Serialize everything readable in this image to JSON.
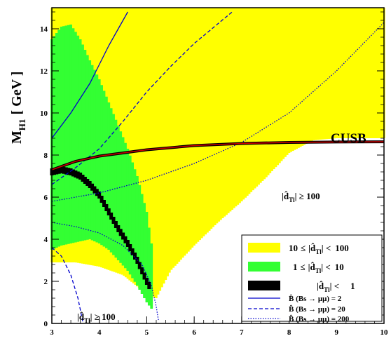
{
  "chart_data": {
    "type": "scatter",
    "ylabel": "M",
    "ylabel_sub": "H1",
    "ylabel_unit": "[ GeV ]",
    "xlim": [
      3,
      10
    ],
    "ylim": [
      0,
      15
    ],
    "x_ticks": [
      "3",
      "4",
      "5",
      "6",
      "7",
      "8",
      "9",
      "10"
    ],
    "y_ticks": [
      "0",
      "2",
      "4",
      "6",
      "8",
      "10",
      "12",
      "14"
    ],
    "colors": {
      "yellow_band": "#ffff00",
      "green_band": "#33ff33",
      "black_band": "#000000",
      "cusb_line": "#cc0000",
      "contour": "#0000cc"
    },
    "regions": {
      "yellow": {
        "label_lo": "10",
        "label_rel1": "≤",
        "label_var": "|d̂",
        "label_sub": "Tl",
        "label_rel2": "|  <",
        "label_hi": "100",
        "x": [
          3.0,
          3.5,
          4.0,
          4.5,
          5.0,
          5.2,
          5.5,
          6.0,
          6.5,
          7.0,
          7.5,
          8.0,
          8.5,
          9.0,
          9.5,
          10.0
        ],
        "y_low": [
          2.9,
          2.9,
          2.7,
          2.3,
          1.4,
          1.2,
          2.5,
          3.7,
          4.8,
          5.8,
          6.9,
          8.1,
          8.7,
          8.8,
          8.8,
          8.8
        ],
        "y_high": [
          15,
          15,
          15,
          15,
          15,
          15,
          15,
          15,
          15,
          15,
          15,
          15,
          15,
          15,
          15,
          15
        ]
      },
      "green": {
        "label_lo": "1",
        "label_rel1": "≤",
        "label_var": "|d̂",
        "label_sub": "Tl",
        "label_rel2": "|  <",
        "label_hi": "10",
        "x": [
          3.0,
          3.2,
          3.4,
          3.6,
          3.8,
          4.0,
          4.2,
          4.4,
          4.6,
          4.8,
          5.0,
          5.1
        ],
        "y_low": [
          3.5,
          3.7,
          3.8,
          3.9,
          4.0,
          3.8,
          3.5,
          3.0,
          2.5,
          1.8,
          1.0,
          0.7
        ],
        "y_high": [
          13.5,
          14.1,
          14.2,
          13.5,
          12.5,
          11.6,
          10.5,
          9.4,
          8.3,
          7.0,
          5.3,
          3.8
        ]
      },
      "black": {
        "label_var": "|d̂",
        "label_sub": "Tl",
        "label_rel2": "|  <",
        "label_hi": "1",
        "x": [
          3.0,
          3.2,
          3.4,
          3.6,
          3.8,
          4.0,
          4.2,
          4.4,
          4.6,
          4.8,
          5.0,
          5.05
        ],
        "y": [
          7.2,
          7.3,
          7.2,
          7.0,
          6.6,
          6.1,
          5.3,
          4.5,
          3.8,
          3.0,
          2.0,
          1.8
        ]
      }
    },
    "cusb": {
      "label": "CUSB",
      "x": [
        3.0,
        3.5,
        4.0,
        5.0,
        6.0,
        7.0,
        8.0,
        9.0,
        10.0
      ],
      "y": [
        7.3,
        7.7,
        7.95,
        8.25,
        8.45,
        8.55,
        8.6,
        8.62,
        8.63
      ]
    },
    "contours": [
      {
        "name": "B̂ (Bs → μμ) = 2",
        "style": "solid",
        "segments": [
          {
            "x": [
              3.0,
              3.4,
              3.8,
              4.0,
              4.2,
              4.4,
              4.6
            ],
            "y": [
              8.8,
              10.0,
              11.4,
              12.3,
              13.2,
              14.0,
              14.8
            ]
          }
        ]
      },
      {
        "name": "B̂ (Bs → μμ) = 20",
        "style": "dashed",
        "segments": [
          {
            "x": [
              3.0,
              3.5,
              4.0,
              4.5,
              5.0,
              5.5,
              6.0,
              6.8
            ],
            "y": [
              6.6,
              7.4,
              8.3,
              9.6,
              11.0,
              12.2,
              13.3,
              14.8
            ]
          },
          {
            "x": [
              3.0,
              3.2,
              3.4,
              3.55,
              3.65
            ],
            "y": [
              3.6,
              3.2,
              2.3,
              1.2,
              0.1
            ]
          }
        ]
      },
      {
        "name": "B̂ (Bs → μμ) = 200",
        "style": "dotted",
        "segments": [
          {
            "x": [
              3.0,
              4.0,
              5.0,
              6.0,
              7.0,
              8.0,
              9.0,
              10.0
            ],
            "y": [
              5.8,
              6.2,
              6.8,
              7.6,
              8.6,
              10.0,
              12.0,
              14.3
            ]
          },
          {
            "x": [
              3.0,
              3.5,
              4.0,
              4.5,
              4.9,
              5.1,
              5.2,
              5.25
            ],
            "y": [
              4.8,
              4.6,
              4.3,
              3.7,
              2.8,
              1.8,
              0.8,
              0.1
            ]
          }
        ]
      }
    ],
    "annotations": {
      "upper_pre": "|d̂",
      "upper_sub": "Tl",
      "upper_post": "|  ≥ 100",
      "lower_pre": "|d̂",
      "lower_sub": "Tl",
      "lower_post": "|  ≥ 100"
    }
  }
}
